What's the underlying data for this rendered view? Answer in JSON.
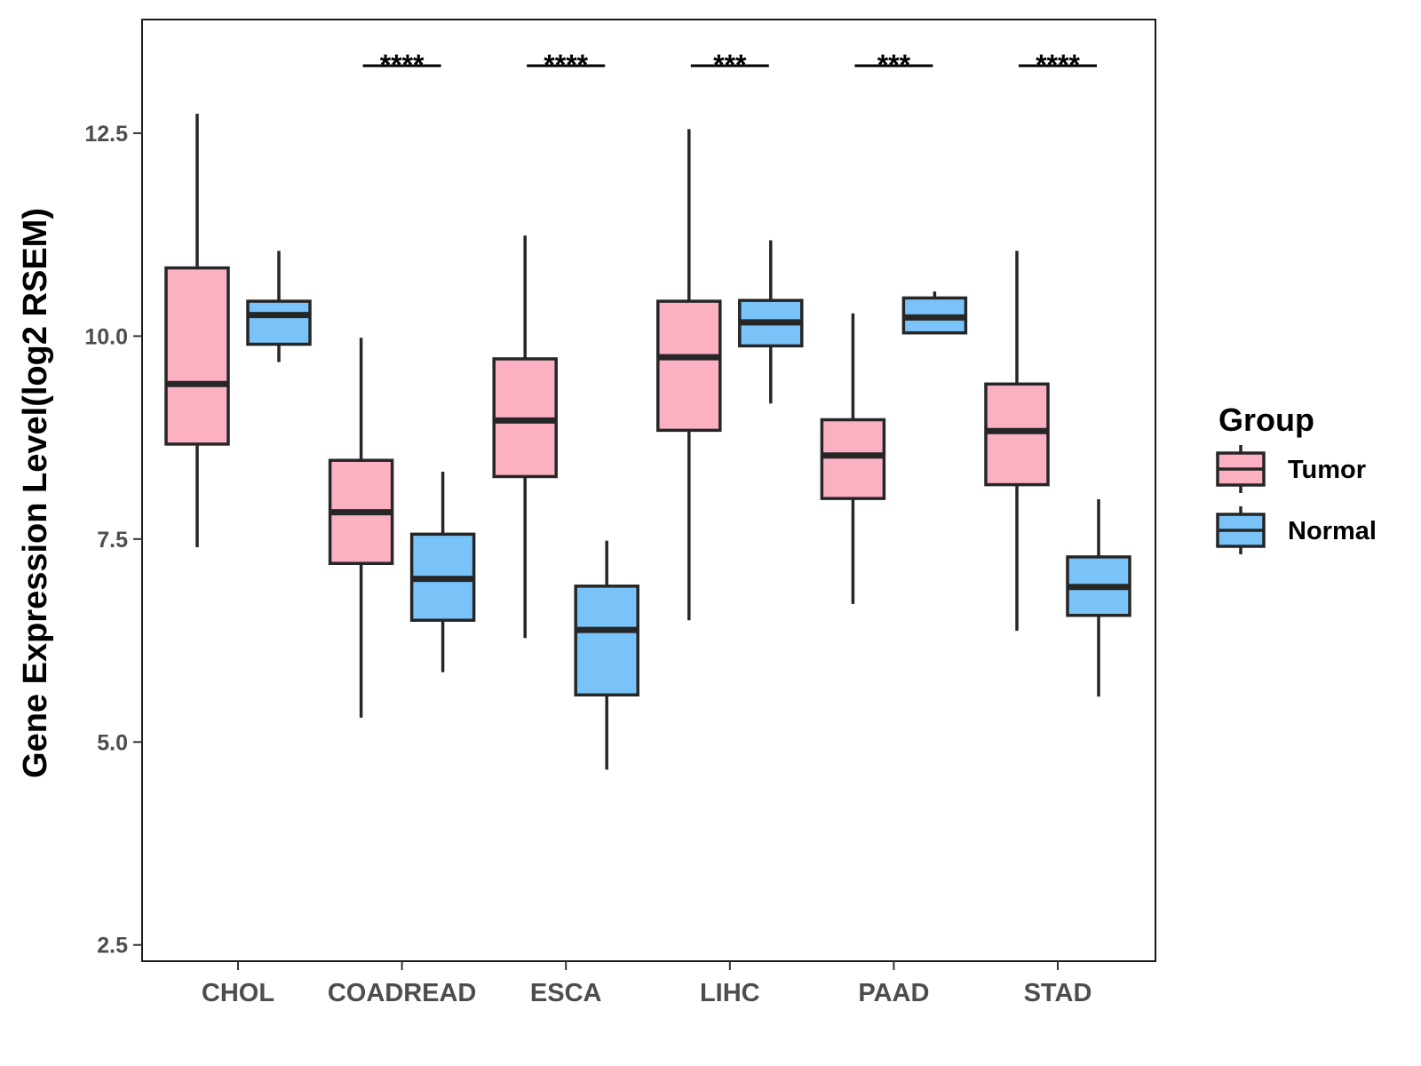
{
  "chart_data": {
    "type": "boxplot",
    "title": "",
    "xlabel": "",
    "ylabel": "Gene Expression Level(log2 RSEM)",
    "ylim": [
      2.3,
      13.9
    ],
    "yticks": [
      2.5,
      5.0,
      7.5,
      10.0,
      12.5
    ],
    "ytick_labels": [
      "2.5",
      "5.0",
      "7.5",
      "10.0",
      "12.5"
    ],
    "categories": [
      "CHOL",
      "COADREAD",
      "ESCA",
      "LIHC",
      "PAAD",
      "STAD"
    ],
    "series": [
      {
        "name": "Tumor",
        "color": "#FBB1C1",
        "boxes": [
          {
            "min": 7.4,
            "q1": 8.67,
            "median": 9.41,
            "q3": 10.84,
            "max": 12.74
          },
          {
            "min": 5.3,
            "q1": 7.2,
            "median": 7.83,
            "q3": 8.47,
            "max": 9.98
          },
          {
            "min": 6.28,
            "q1": 8.27,
            "median": 8.96,
            "q3": 9.72,
            "max": 11.24
          },
          {
            "min": 6.5,
            "q1": 8.84,
            "median": 9.74,
            "q3": 10.43,
            "max": 12.55
          },
          {
            "min": 6.7,
            "q1": 8.0,
            "median": 8.53,
            "q3": 8.97,
            "max": 10.28
          },
          {
            "min": 6.37,
            "q1": 8.17,
            "median": 8.83,
            "q3": 9.41,
            "max": 11.05
          }
        ]
      },
      {
        "name": "Normal",
        "color": "#7AC3F9",
        "boxes": [
          {
            "min": 9.68,
            "q1": 9.9,
            "median": 10.26,
            "q3": 10.43,
            "max": 11.05
          },
          {
            "min": 5.86,
            "q1": 6.5,
            "median": 7.01,
            "q3": 7.56,
            "max": 8.33
          },
          {
            "min": 4.66,
            "q1": 5.58,
            "median": 6.38,
            "q3": 6.92,
            "max": 7.48
          },
          {
            "min": 9.17,
            "q1": 9.88,
            "median": 10.17,
            "q3": 10.44,
            "max": 11.18
          },
          {
            "min": 10.04,
            "q1": 10.04,
            "median": 10.23,
            "q3": 10.47,
            "max": 10.55
          },
          {
            "min": 5.56,
            "q1": 6.56,
            "median": 6.91,
            "q3": 7.28,
            "max": 7.99
          }
        ]
      }
    ],
    "significance": [
      {
        "category": "CHOL",
        "label": ""
      },
      {
        "category": "COADREAD",
        "label": "****"
      },
      {
        "category": "ESCA",
        "label": "****"
      },
      {
        "category": "LIHC",
        "label": "***"
      },
      {
        "category": "PAAD",
        "label": "***"
      },
      {
        "category": "STAD",
        "label": "****"
      }
    ],
    "legend": {
      "title": "Group",
      "position": "right",
      "items": [
        "Tumor",
        "Normal"
      ]
    },
    "grid": false
  }
}
